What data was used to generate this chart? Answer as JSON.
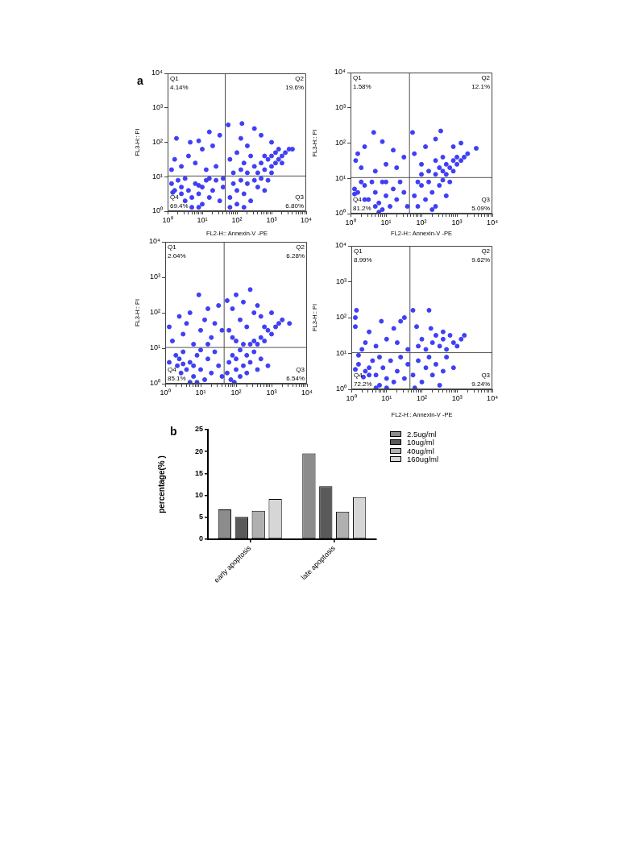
{
  "chart_data": [
    {
      "type": "scatter",
      "title": "a",
      "xlabel": "FL2-H:: Annexin-V -PE",
      "ylabel": "FL3-H:: PI",
      "log": "xy",
      "xlim": [
        1,
        10000
      ],
      "ylim": [
        1,
        10000
      ],
      "xticks": [
        {
          "value": 1,
          "label": "10⁰"
        },
        {
          "value": 2,
          "label": null
        },
        {
          "value": 3,
          "label": null
        },
        {
          "value": 4,
          "label": null
        },
        {
          "value": 5,
          "label": null
        },
        {
          "value": 6,
          "label": null
        },
        {
          "value": 7,
          "label": null
        },
        {
          "value": 8,
          "label": null
        },
        {
          "value": 9,
          "label": null
        },
        {
          "value": 10,
          "label": "10¹"
        },
        {
          "value": 20,
          "label": null
        },
        {
          "value": 30,
          "label": null
        },
        {
          "value": 40,
          "label": null
        },
        {
          "value": 50,
          "label": null
        },
        {
          "value": 60,
          "label": null
        },
        {
          "value": 70,
          "label": null
        },
        {
          "value": 80,
          "label": null
        },
        {
          "value": 90,
          "label": null
        },
        {
          "value": 100,
          "label": "10²"
        },
        {
          "value": 200,
          "label": null
        },
        {
          "value": 300,
          "label": null
        },
        {
          "value": 400,
          "label": null
        },
        {
          "value": 500,
          "label": null
        },
        {
          "value": 600,
          "label": null
        },
        {
          "value": 700,
          "label": null
        },
        {
          "value": 800,
          "label": null
        },
        {
          "value": 900,
          "label": null
        },
        {
          "value": 1000,
          "label": "10³"
        },
        {
          "value": 2000,
          "label": null
        },
        {
          "value": 3000,
          "label": null
        },
        {
          "value": 4000,
          "label": null
        },
        {
          "value": 5000,
          "label": null
        },
        {
          "value": 6000,
          "label": null
        },
        {
          "value": 7000,
          "label": null
        },
        {
          "value": 8000,
          "label": null
        },
        {
          "value": 9000,
          "label": null
        },
        {
          "value": 10000,
          "label": "10⁴"
        }
      ],
      "yticks": [
        {
          "value": 1,
          "label": "10⁰"
        },
        {
          "value": 10,
          "label": "10¹"
        },
        {
          "value": 100,
          "label": "10²"
        },
        {
          "value": 1000,
          "label": "10³"
        },
        {
          "value": 10000,
          "label": "10⁴"
        }
      ],
      "x": [
        1.4,
        2.5,
        7.9,
        2.5,
        3.2,
        4.0,
        5.0,
        5.0,
        6.3,
        7.9,
        10,
        10,
        13,
        16,
        20,
        25,
        32,
        40,
        1.3,
        2.0,
        3.2,
        1.6,
        16,
        7.9,
        40,
        63,
        79,
        100,
        100,
        130,
        160,
        200,
        250,
        320,
        400,
        500,
        630,
        63,
        160,
        790,
        79,
        130,
        200,
        320,
        400,
        500,
        630,
        790,
        1000,
        1000,
        1300,
        1300,
        1600,
        1600,
        2000,
        2500,
        3200,
        630,
        1000,
        2000,
        250,
        160,
        4000,
        56,
        140,
        320,
        130,
        200,
        100,
        63,
        1000,
        500,
        1.6,
        1.8,
        2.5,
        4.5,
        6.3,
        7.9,
        10,
        16,
        20,
        32,
        1.3,
        25,
        4.0,
        13
      ],
      "values": [
        3.5,
        3.2,
        1.3,
        5.0,
        2.0,
        4.0,
        1.3,
        2.5,
        6.3,
        3.2,
        1.6,
        5.0,
        7.9,
        2.5,
        4.0,
        7.9,
        2.0,
        5.0,
        6.3,
        7.9,
        8.9,
        4.0,
        8.9,
        5.6,
        8.9,
        2.5,
        6.3,
        1.6,
        4.0,
        7.9,
        3.2,
        6.3,
        2.0,
        7.9,
        5.0,
        8.9,
        4.0,
        1.3,
        1.3,
        7.9,
        13,
        16,
        13,
        20,
        13,
        25,
        16,
        32,
        20,
        40,
        25,
        50,
        32,
        63,
        40,
        50,
        63,
        40,
        13,
        25,
        40,
        25,
        63,
        320,
        350,
        250,
        130,
        79,
        50,
        32,
        100,
        160,
        32,
        130,
        20,
        100,
        25,
        110,
        63,
        200,
        79,
        160,
        16,
        20,
        40,
        16
      ],
      "color": "#3f3ff5",
      "marker": "circle",
      "ref_lines": [
        {
          "axis": "x",
          "value": 46,
          "color": "#505050"
        },
        {
          "axis": "y",
          "value": 10.5,
          "color": "#505050"
        }
      ],
      "annotations": [
        "Q1",
        "4.14%",
        "Q2",
        "19.6%",
        "Q4",
        "69.4%",
        "Q3",
        "6.80%"
      ]
    },
    {
      "type": "scatter",
      "xlabel": "FL2-H:: Annexin-V -PE",
      "ylabel": "FL3-H:: PI",
      "log": "xy",
      "xlim": [
        1,
        10000
      ],
      "ylim": [
        1,
        10000
      ],
      "xticks": [
        {
          "value": 1,
          "label": "10⁰"
        },
        {
          "value": 2,
          "label": null
        },
        {
          "value": 3,
          "label": null
        },
        {
          "value": 4,
          "label": null
        },
        {
          "value": 5,
          "label": null
        },
        {
          "value": 6,
          "label": null
        },
        {
          "value": 7,
          "label": null
        },
        {
          "value": 8,
          "label": null
        },
        {
          "value": 9,
          "label": null
        },
        {
          "value": 10,
          "label": "10¹"
        },
        {
          "value": 20,
          "label": null
        },
        {
          "value": 30,
          "label": null
        },
        {
          "value": 40,
          "label": null
        },
        {
          "value": 50,
          "label": null
        },
        {
          "value": 60,
          "label": null
        },
        {
          "value": 70,
          "label": null
        },
        {
          "value": 80,
          "label": null
        },
        {
          "value": 90,
          "label": null
        },
        {
          "value": 100,
          "label": "10²"
        },
        {
          "value": 200,
          "label": null
        },
        {
          "value": 300,
          "label": null
        },
        {
          "value": 400,
          "label": null
        },
        {
          "value": 500,
          "label": null
        },
        {
          "value": 600,
          "label": null
        },
        {
          "value": 700,
          "label": null
        },
        {
          "value": 800,
          "label": null
        },
        {
          "value": 900,
          "label": null
        },
        {
          "value": 1000,
          "label": "10³"
        },
        {
          "value": 2000,
          "label": null
        },
        {
          "value": 3000,
          "label": null
        },
        {
          "value": 4000,
          "label": null
        },
        {
          "value": 5000,
          "label": null
        },
        {
          "value": 6000,
          "label": null
        },
        {
          "value": 7000,
          "label": null
        },
        {
          "value": 8000,
          "label": null
        },
        {
          "value": 9000,
          "label": null
        },
        {
          "value": 10000,
          "label": "10⁴"
        }
      ],
      "yticks": [
        {
          "value": 1,
          "label": "10⁰"
        },
        {
          "value": 10,
          "label": "10¹"
        },
        {
          "value": 100,
          "label": "10²"
        },
        {
          "value": 1000,
          "label": "10³"
        },
        {
          "value": 10000,
          "label": "10⁴"
        }
      ],
      "x": [
        1.3,
        1.6,
        7.9,
        2.5,
        3.2,
        5.0,
        5.0,
        6.3,
        7.9,
        10,
        13,
        16,
        20,
        25,
        32,
        40,
        1.3,
        2.0,
        4.0,
        10,
        6.3,
        2.5,
        63,
        79,
        100,
        130,
        160,
        200,
        250,
        320,
        400,
        500,
        630,
        79,
        200,
        100,
        160,
        250,
        320,
        400,
        500,
        500,
        630,
        790,
        790,
        1000,
        1000,
        1300,
        1600,
        2000,
        400,
        250,
        3500,
        56,
        350,
        250,
        63,
        130,
        790,
        100,
        1300,
        1.4,
        2.0,
        4.5,
        7.9,
        2.5,
        10,
        20,
        32,
        5.0,
        16,
        1.6
      ],
      "values": [
        3.6,
        4.0,
        1.3,
        6.3,
        2.5,
        1.6,
        4.0,
        2.0,
        7.9,
        3.2,
        1.6,
        5.0,
        2.5,
        7.9,
        4.0,
        1.6,
        5.0,
        7.9,
        7.9,
        7.9,
        1.1,
        2.5,
        3.2,
        1.6,
        6.3,
        2.5,
        7.9,
        4.0,
        1.6,
        6.3,
        8.9,
        3.2,
        7.9,
        7.9,
        1.3,
        13,
        16,
        13,
        20,
        16,
        25,
        13,
        20,
        32,
        16,
        25,
        40,
        32,
        40,
        50,
        40,
        32,
        71,
        200,
        220,
        130,
        50,
        79,
        79,
        25,
        100,
        32,
        20,
        200,
        110,
        79,
        25,
        20,
        40,
        16,
        63,
        50
      ],
      "color": "#3f3ff5",
      "marker": "circle",
      "ref_lines": [
        {
          "axis": "x",
          "value": 46,
          "color": "#505050"
        },
        {
          "axis": "y",
          "value": 10.5,
          "color": "#505050"
        }
      ],
      "annotations": [
        "Q1",
        "1.58%",
        "Q2",
        "12.1%",
        "Q4",
        "81.2%",
        "Q3",
        "5.09%"
      ]
    },
    {
      "type": "scatter",
      "ylabel": "FL3-H:: PI",
      "log": "xy",
      "xlim": [
        1,
        10000
      ],
      "ylim": [
        1,
        10000
      ],
      "xticks": [
        {
          "value": 1,
          "label": "10⁰"
        },
        {
          "value": 2,
          "label": null
        },
        {
          "value": 3,
          "label": null
        },
        {
          "value": 4,
          "label": null
        },
        {
          "value": 5,
          "label": null
        },
        {
          "value": 6,
          "label": null
        },
        {
          "value": 7,
          "label": null
        },
        {
          "value": 8,
          "label": null
        },
        {
          "value": 9,
          "label": null
        },
        {
          "value": 10,
          "label": "10¹"
        },
        {
          "value": 20,
          "label": null
        },
        {
          "value": 30,
          "label": null
        },
        {
          "value": 40,
          "label": null
        },
        {
          "value": 50,
          "label": null
        },
        {
          "value": 60,
          "label": null
        },
        {
          "value": 70,
          "label": null
        },
        {
          "value": 80,
          "label": null
        },
        {
          "value": 90,
          "label": null
        },
        {
          "value": 100,
          "label": "10²"
        },
        {
          "value": 200,
          "label": null
        },
        {
          "value": 300,
          "label": null
        },
        {
          "value": 400,
          "label": null
        },
        {
          "value": 500,
          "label": null
        },
        {
          "value": 600,
          "label": null
        },
        {
          "value": 700,
          "label": null
        },
        {
          "value": 800,
          "label": null
        },
        {
          "value": 900,
          "label": null
        },
        {
          "value": 1000,
          "label": "10³"
        },
        {
          "value": 2000,
          "label": null
        },
        {
          "value": 3000,
          "label": null
        },
        {
          "value": 4000,
          "label": null
        },
        {
          "value": 5000,
          "label": null
        },
        {
          "value": 6000,
          "label": null
        },
        {
          "value": 7000,
          "label": null
        },
        {
          "value": 8000,
          "label": null
        },
        {
          "value": 9000,
          "label": null
        },
        {
          "value": 10000,
          "label": "10⁴"
        }
      ],
      "yticks": [
        {
          "value": 1,
          "label": "10⁰"
        },
        {
          "value": 10,
          "label": "10¹"
        },
        {
          "value": 100,
          "label": "10²"
        },
        {
          "value": 1000,
          "label": "10³"
        },
        {
          "value": 10000,
          "label": "10⁴"
        }
      ],
      "x": [
        3.2,
        2.2,
        2.8,
        2.5,
        7.9,
        4.0,
        5.0,
        6.3,
        7.9,
        10,
        13,
        16,
        20,
        25,
        32,
        40,
        1.3,
        2.0,
        3.2,
        6.3,
        5.0,
        10,
        56,
        63,
        71,
        79,
        100,
        100,
        130,
        130,
        160,
        200,
        200,
        250,
        320,
        400,
        500,
        790,
        89,
        250,
        320,
        400,
        500,
        630,
        790,
        1000,
        1300,
        1600,
        630,
        2000,
        160,
        100,
        63,
        79,
        130,
        160,
        250,
        320,
        200,
        400,
        56,
        100,
        500,
        1000,
        3200,
        79,
        1.3,
        1.6,
        2.5,
        3.2,
        5.0,
        6.3,
        8.9,
        10,
        13,
        16,
        20,
        25,
        32,
        40,
        4.0,
        16
      ],
      "values": [
        3.6,
        3.2,
        2.0,
        5.0,
        1.1,
        2.5,
        4.0,
        1.6,
        6.3,
        2.5,
        1.3,
        5.0,
        2.0,
        7.9,
        3.2,
        1.6,
        4.0,
        6.3,
        7.9,
        3.2,
        1.1,
        8.9,
        2.0,
        4.0,
        1.3,
        6.3,
        2.5,
        5.0,
        1.6,
        8.9,
        3.2,
        6.3,
        2.0,
        4.0,
        7.9,
        2.5,
        5.0,
        3.2,
        1.1,
        13,
        16,
        13,
        20,
        16,
        32,
        25,
        40,
        50,
        40,
        63,
        13,
        16,
        32,
        130,
        63,
        200,
        450,
        100,
        40,
        160,
        220,
        320,
        79,
        100,
        50,
        20,
        40,
        16,
        79,
        25,
        100,
        13,
        320,
        32,
        63,
        130,
        20,
        50,
        160,
        32,
        50,
        13
      ],
      "color": "#3f3ff5",
      "marker": "circle",
      "ref_lines": [
        {
          "axis": "x",
          "value": 46,
          "color": "#505050"
        },
        {
          "axis": "y",
          "value": 10.5,
          "color": "#505050"
        }
      ],
      "annotations": [
        "Q1",
        "2.04%",
        "Q2",
        "6.28%",
        "Q4",
        "85.1%",
        "Q3",
        "6.54%"
      ]
    },
    {
      "type": "scatter",
      "xlabel": "FL2-H:: Annexin-V -PE",
      "ylabel": "FL3-H:: PI",
      "log": "xy",
      "xlim": [
        1,
        10000
      ],
      "ylim": [
        1,
        10000
      ],
      "xticks": [
        {
          "value": 1,
          "label": "10⁰"
        },
        {
          "value": 2,
          "label": null
        },
        {
          "value": 3,
          "label": null
        },
        {
          "value": 4,
          "label": null
        },
        {
          "value": 5,
          "label": null
        },
        {
          "value": 6,
          "label": null
        },
        {
          "value": 7,
          "label": null
        },
        {
          "value": 8,
          "label": null
        },
        {
          "value": 9,
          "label": null
        },
        {
          "value": 10,
          "label": "10¹"
        },
        {
          "value": 20,
          "label": null
        },
        {
          "value": 30,
          "label": null
        },
        {
          "value": 40,
          "label": null
        },
        {
          "value": 50,
          "label": null
        },
        {
          "value": 60,
          "label": null
        },
        {
          "value": 70,
          "label": null
        },
        {
          "value": 80,
          "label": null
        },
        {
          "value": 90,
          "label": null
        },
        {
          "value": 100,
          "label": "10²"
        },
        {
          "value": 200,
          "label": null
        },
        {
          "value": 300,
          "label": null
        },
        {
          "value": 400,
          "label": null
        },
        {
          "value": 500,
          "label": null
        },
        {
          "value": 600,
          "label": null
        },
        {
          "value": 700,
          "label": null
        },
        {
          "value": 800,
          "label": null
        },
        {
          "value": 900,
          "label": null
        },
        {
          "value": 1000,
          "label": "10³"
        },
        {
          "value": 2000,
          "label": null
        },
        {
          "value": 3000,
          "label": null
        },
        {
          "value": 4000,
          "label": null
        },
        {
          "value": 5000,
          "label": null
        },
        {
          "value": 6000,
          "label": null
        },
        {
          "value": 7000,
          "label": null
        },
        {
          "value": 8000,
          "label": null
        },
        {
          "value": 9000,
          "label": null
        },
        {
          "value": 10000,
          "label": "10⁴"
        }
      ],
      "yticks": [
        {
          "value": 1,
          "label": "10⁰"
        },
        {
          "value": 10,
          "label": "10¹"
        },
        {
          "value": 100,
          "label": "10²"
        },
        {
          "value": 1000,
          "label": "10³"
        },
        {
          "value": 10000,
          "label": "10⁴"
        }
      ],
      "x": [
        1.3,
        1.6,
        5.0,
        2.5,
        3.2,
        4.0,
        5.0,
        6.3,
        7.9,
        10,
        13,
        16,
        20,
        25,
        32,
        40,
        1.6,
        3.2,
        6.3,
        10,
        2.2,
        56,
        79,
        100,
        130,
        160,
        200,
        250,
        320,
        400,
        500,
        790,
        63,
        56,
        71,
        160,
        180,
        100,
        130,
        200,
        250,
        320,
        400,
        500,
        630,
        790,
        1000,
        1300,
        1600,
        79,
        400,
        1.4,
        1.3,
        1.3,
        3.2,
        5.0,
        7.1,
        10,
        16,
        20,
        25,
        32,
        2.5,
        40,
        2.0
      ],
      "values": [
        3.6,
        5.0,
        1.1,
        3.2,
        2.5,
        6.3,
        2.5,
        1.3,
        4.0,
        2.0,
        6.3,
        1.6,
        3.2,
        7.9,
        2.0,
        5.0,
        8.9,
        4.0,
        7.9,
        1.1,
        2.2,
        2.5,
        6.3,
        1.6,
        4.0,
        7.9,
        2.5,
        5.0,
        1.3,
        3.2,
        7.9,
        4.0,
        1.1,
        160,
        56,
        160,
        50,
        25,
        13,
        20,
        32,
        16,
        25,
        13,
        32,
        20,
        16,
        25,
        32,
        16,
        40,
        160,
        100,
        56,
        40,
        16,
        79,
        25,
        50,
        20,
        79,
        100,
        20,
        13,
        13
      ],
      "color": "#3f3ff5",
      "marker": "circle",
      "ref_lines": [
        {
          "axis": "x",
          "value": 46,
          "color": "#505050"
        },
        {
          "axis": "y",
          "value": 10.5,
          "color": "#505050"
        }
      ],
      "annotations": [
        "Q1",
        "8.99%",
        "Q2",
        "9.62%",
        "Q4",
        "72.2%",
        "Q3",
        "9.24%"
      ]
    },
    {
      "type": "bar",
      "title": "b",
      "ylabel": "percentage(% )",
      "categories": [
        "early apoptosis",
        "late apoptosis"
      ],
      "series": [
        {
          "name": "2.5ug/ml",
          "color": "#8c8c8c",
          "values": [
            6.8,
            19.6
          ]
        },
        {
          "name": "10ug/ml",
          "color": "#5a5a5a",
          "values": [
            5.1,
            12.1
          ]
        },
        {
          "name": "40ug/ml",
          "color": "#b0b0b0",
          "values": [
            6.5,
            6.3
          ]
        },
        {
          "name": "160ug/ml",
          "color": "#d6d6d6",
          "values": [
            9.2,
            9.6
          ]
        }
      ],
      "ylim": [
        0,
        25
      ],
      "yticks": [
        0,
        5,
        10,
        15,
        20,
        25
      ],
      "legend": "top right"
    }
  ]
}
